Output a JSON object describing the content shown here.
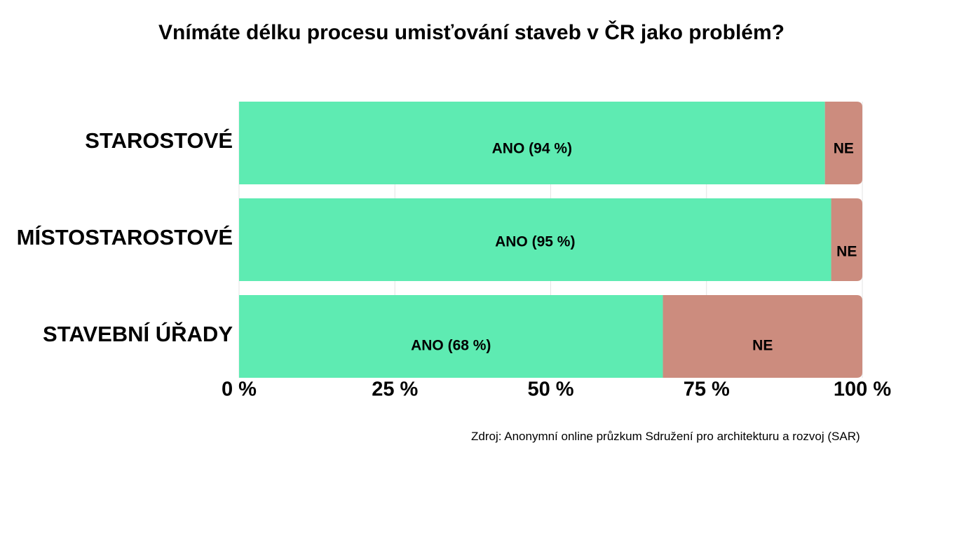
{
  "chart_data": {
    "type": "bar",
    "orientation": "horizontal",
    "stacked": true,
    "title": "Vnímáte délku procesu umisťování staveb v ČR jako problém?",
    "categories": [
      "STAROSTOVÉ",
      "MÍSTOSTAROSTOVÉ",
      "STAVEBNÍ ÚŘADY"
    ],
    "series": [
      {
        "name": "ANO",
        "values": [
          94,
          95,
          68
        ],
        "color": "#5eebb2",
        "labels": [
          "ANO (94 %)",
          "ANO (95 %)",
          "ANO (68 %)"
        ]
      },
      {
        "name": "NE",
        "values": [
          6,
          5,
          32
        ],
        "color": "#cc8c7e",
        "labels": [
          "NE",
          "NE",
          "NE"
        ]
      }
    ],
    "xlim": [
      0,
      100
    ],
    "xticks": [
      0,
      25,
      50,
      75,
      100
    ],
    "xtick_labels": [
      "0 %",
      "25 %",
      "50 %",
      "75 %",
      "100 %"
    ],
    "grid": "vertical",
    "legend": "none",
    "source": "Zdroj: Anonymní online průzkum Sdružení pro architekturu a rozvoj (SAR)"
  }
}
